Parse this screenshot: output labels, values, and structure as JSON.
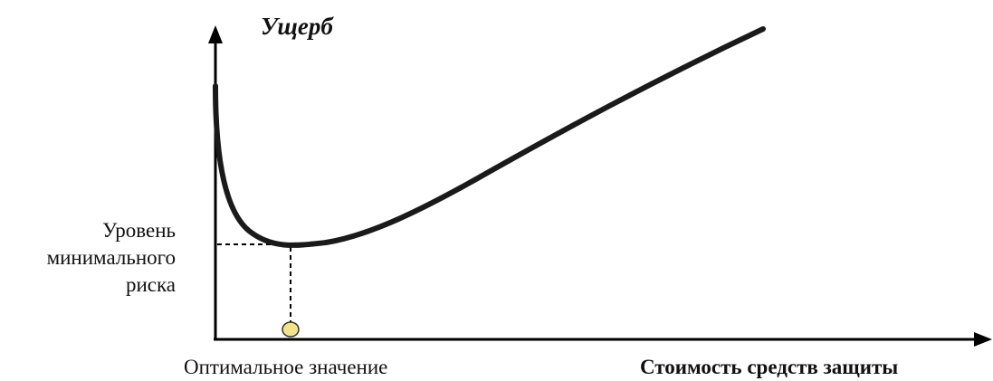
{
  "diagram": {
    "y_axis_label": "Ущерб",
    "x_axis_label": "Стоимость средств защиты",
    "min_level_label": [
      "Уровень",
      "минимального",
      "риска"
    ],
    "optimum_label": "Оптимальное значение"
  },
  "colors": {
    "curve": "#1a1a1a",
    "axes": "#000000",
    "marker_fill": "#f3e48a",
    "marker_stroke": "#333333"
  }
}
